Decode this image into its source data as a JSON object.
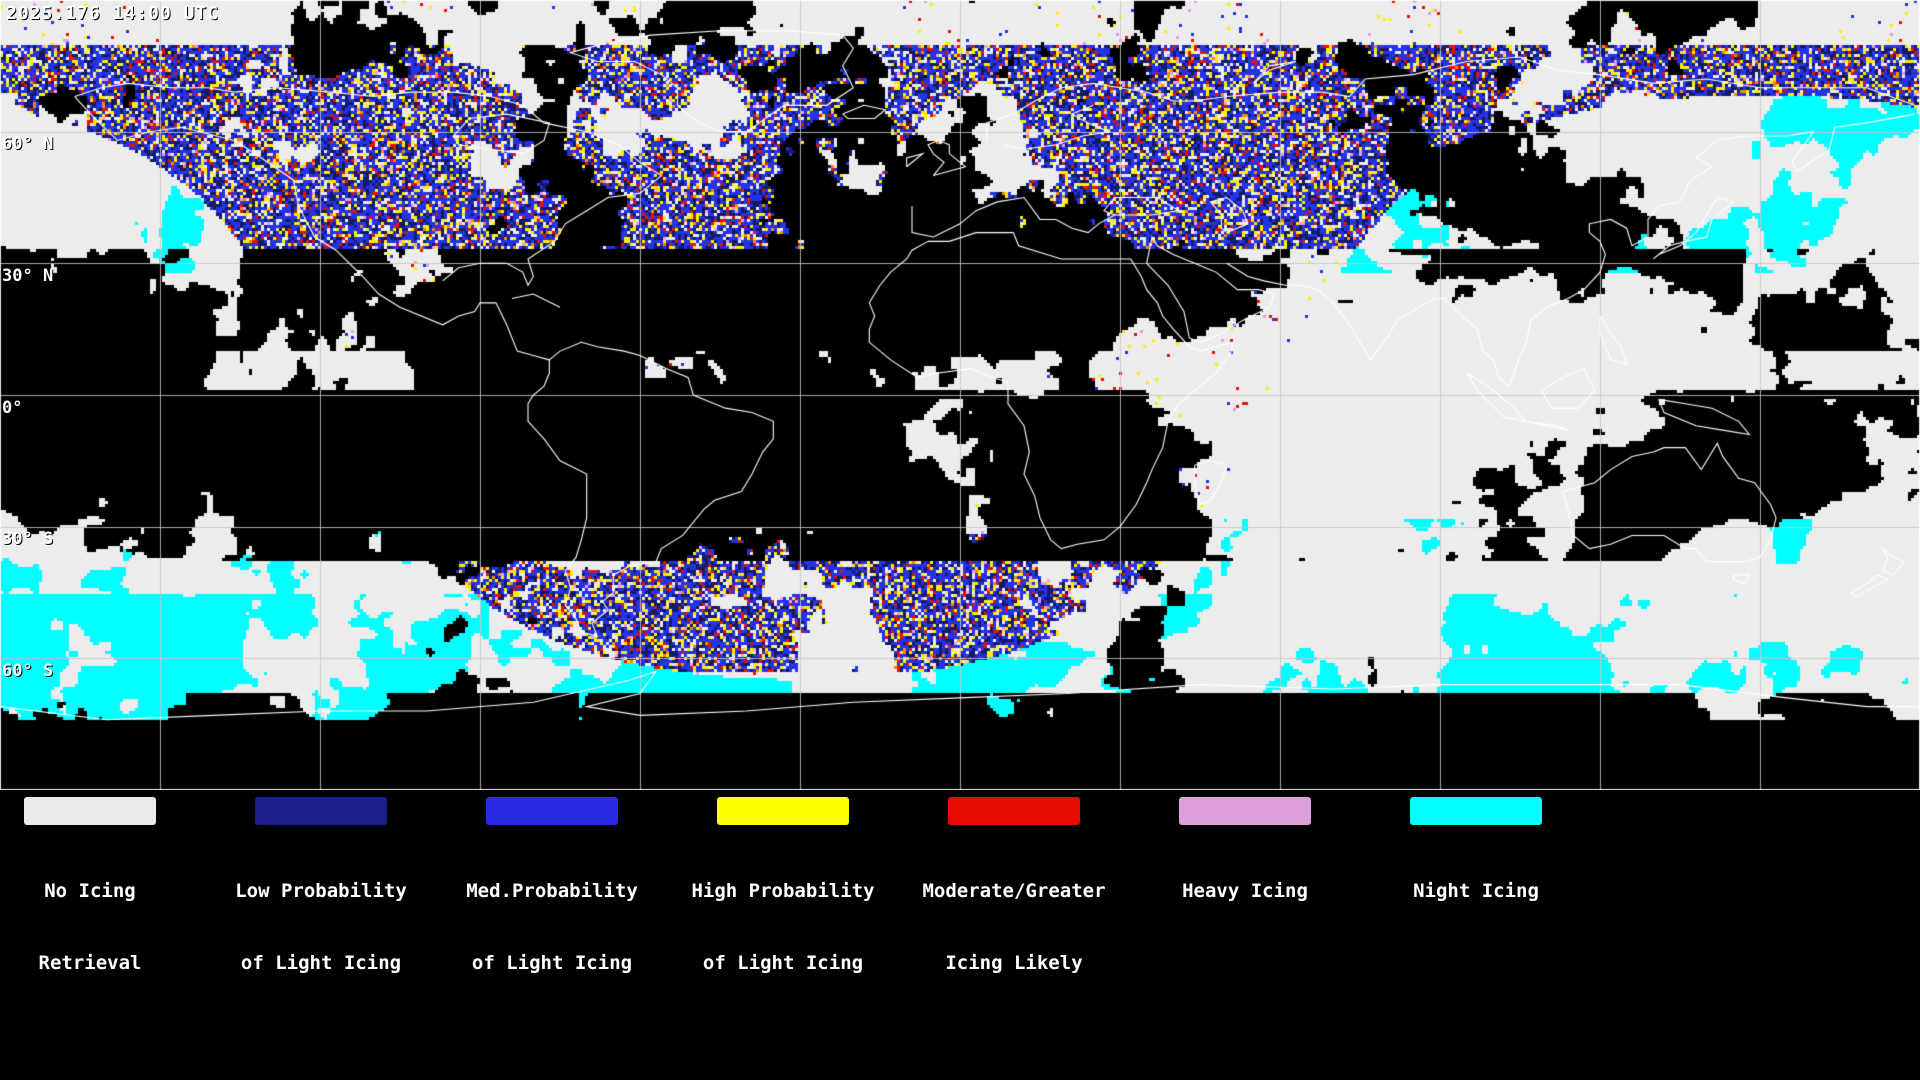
{
  "header": {
    "timestamp": "2025.176 14:00 UTC"
  },
  "map": {
    "lat_labels": [
      "60° N",
      "30° N",
      "0°",
      "30° S",
      "60° S"
    ]
  },
  "legend": {
    "items": [
      {
        "line1": "No Icing",
        "line2": "Retrieval",
        "color": "#ebebeb"
      },
      {
        "line1": "Low Probability",
        "line2": "of Light Icing",
        "color": "#1c1f8a"
      },
      {
        "line1": "Med.Probability",
        "line2": "of Light Icing",
        "color": "#2a2ae0"
      },
      {
        "line1": "High Probability",
        "line2": "of Light Icing",
        "color": "#ffff00"
      },
      {
        "line1": "Moderate/Greater",
        "line2": "Icing Likely",
        "color": "#e80b00"
      },
      {
        "line1": "Heavy Icing",
        "line2": "",
        "color": "#dda0dd"
      },
      {
        "line1": "Night Icing",
        "line2": "",
        "color": "#00ffff"
      }
    ]
  },
  "colors": {
    "background": "#000000",
    "coastline": "#ffffff",
    "graticule": "#c8c8c8",
    "no_icing": "#ebebeb",
    "low_prob": "#1c1f8a",
    "med_prob": "#2a2ae0",
    "high_prob": "#ffff00",
    "moderate_greater": "#e80b00",
    "heavy": "#dda0dd",
    "night": "#00ffff"
  }
}
